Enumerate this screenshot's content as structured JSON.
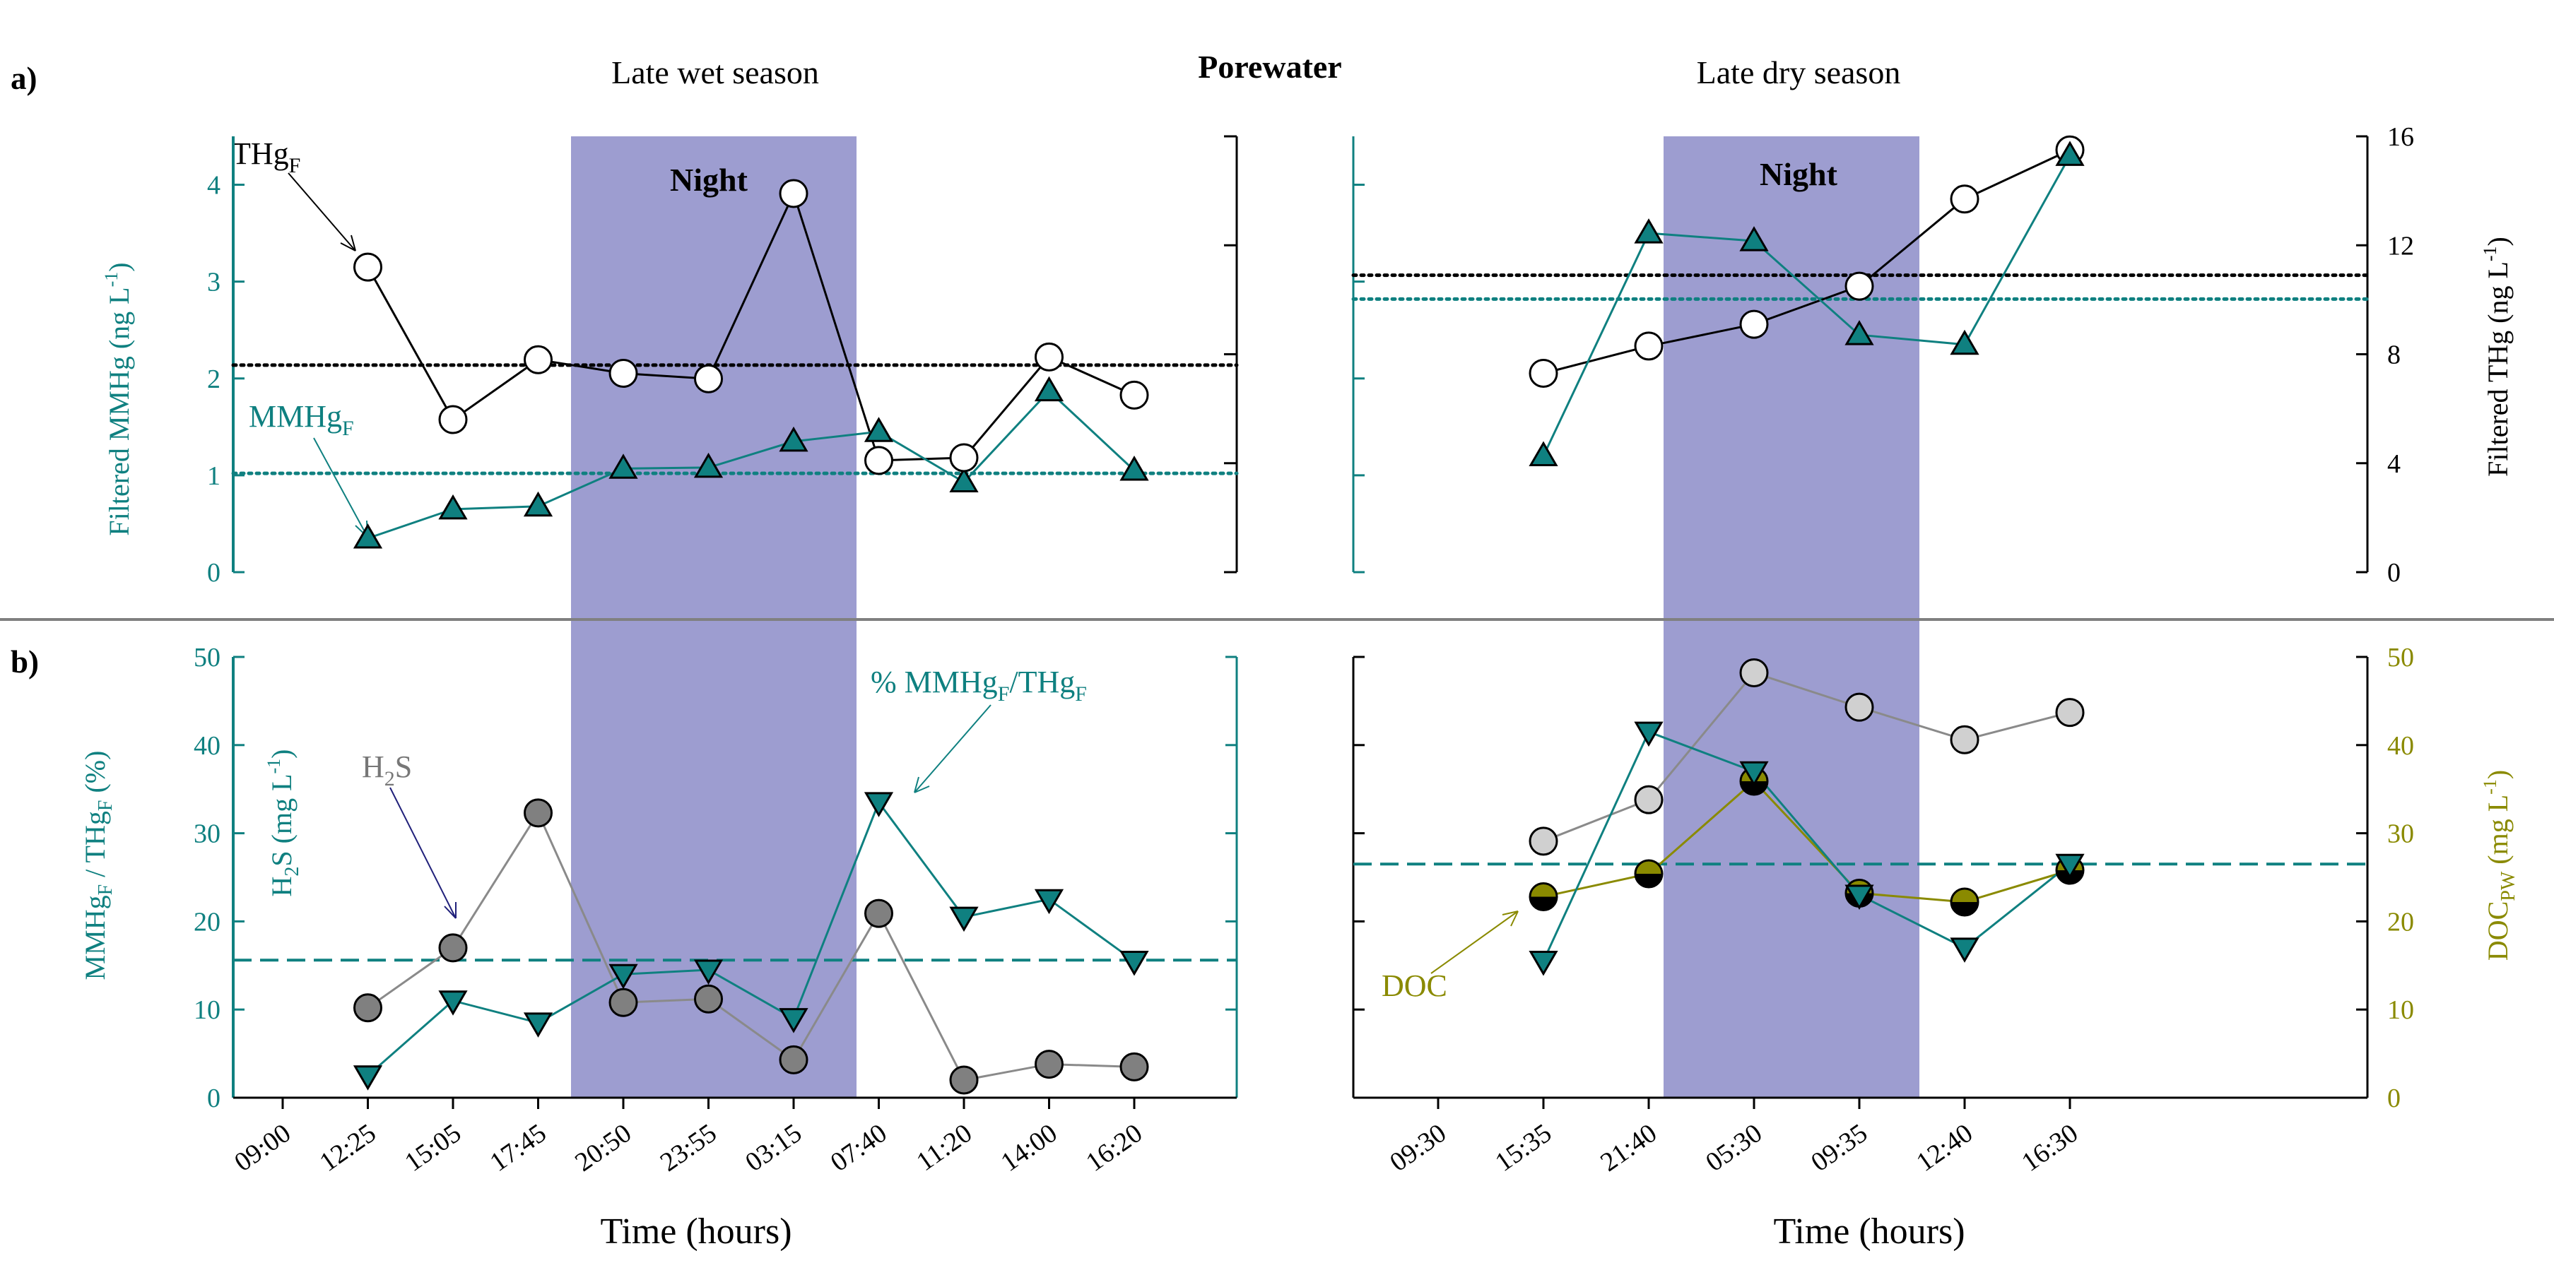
{
  "header": {
    "panel_a": "a)",
    "panel_b": "b)",
    "section_left": "Late wet season",
    "section_center": "Porewater",
    "section_right": "Late dry season",
    "night_label": "Night",
    "xlabel": "Time (hours)"
  },
  "colors": {
    "teal": "#0f8080",
    "black": "#000000",
    "night": "#8f8fca",
    "h2s": "#7a7a7a",
    "doc": "#8a8a00",
    "gray_divider": "#808080",
    "dark_gray_marker": "#808080",
    "light_gray_marker": "#d0d0d0"
  },
  "annotations": {
    "thg": {
      "main": "THg",
      "sub": "F"
    },
    "mmhg": {
      "main": "MMHg",
      "sub": "F"
    },
    "pct": {
      "a": "% MMHg",
      "sub1": "F",
      "b": "/THg",
      "sub2": "F"
    },
    "h2s": {
      "a": "H",
      "sub": "2",
      "b": "S"
    },
    "doc": "DOC"
  },
  "axes": {
    "a_left": {
      "label": "Filtered MMHg (ng L",
      "sup": "-1",
      "end": ")",
      "ticks": [
        "0",
        "1",
        "2",
        "3",
        "4"
      ]
    },
    "a_right": {
      "label": "Filtered THg (ng L",
      "sup": "-1",
      "end": ")",
      "ticks": [
        "0",
        "4",
        "8",
        "12",
        "16"
      ]
    },
    "b_left_outer": {
      "a": "MMHg",
      "s1": "F",
      "b": " / THg",
      "s2": "F",
      "c": " (%)",
      "ticks": [
        "0",
        "10",
        "20",
        "30",
        "40",
        "50"
      ]
    },
    "b_left_inner": {
      "a": "H",
      "s1": "2",
      "b": "S (mg L",
      "sup": "-1",
      "c": ")"
    },
    "b_right": {
      "a": "DOC",
      "s1": "PW",
      "b": " (mg L",
      "sup": "-1",
      "c": ")",
      "ticks": [
        "0",
        "10",
        "20",
        "30",
        "40",
        "50"
      ]
    }
  },
  "chart_data": [
    {
      "type": "line",
      "title": "a) Late wet season — Porewater",
      "categories": [
        "09:00",
        "12:25",
        "15:05",
        "17:45",
        "20:50",
        "23:55",
        "03:15",
        "07:40",
        "11:20",
        "14:00",
        "16:20"
      ],
      "night": {
        "from": 3.25,
        "to": 6.6
      },
      "series": [
        {
          "name": "MMHgF",
          "axis": "left",
          "ylim": [
            0,
            4.5
          ],
          "values": [
            null,
            0.35,
            0.65,
            0.68,
            1.07,
            1.08,
            1.35,
            1.45,
            0.93,
            1.87,
            1.05
          ],
          "reference": 1.02
        },
        {
          "name": "THgF",
          "axis": "right",
          "ylim": [
            0,
            16
          ],
          "values": [
            null,
            11.2,
            5.6,
            7.8,
            7.3,
            7.1,
            13.9,
            4.1,
            4.2,
            7.9,
            6.5
          ],
          "reference": 7.6
        }
      ]
    },
    {
      "type": "line",
      "title": "a) Late dry season — Porewater",
      "categories": [
        "09:30",
        "15:35",
        "21:40",
        "05:30",
        "09:35",
        "12:40",
        "16:30"
      ],
      "night": {
        "from": 1.75,
        "to": 3.55
      },
      "series": [
        {
          "name": "MMHgF",
          "axis": "left",
          "ylim": [
            0,
            4.5
          ],
          "values": [
            null,
            1.2,
            3.5,
            3.42,
            2.45,
            2.35,
            4.3
          ],
          "reference": 2.82
        },
        {
          "name": "THgF",
          "axis": "right",
          "ylim": [
            0,
            16
          ],
          "values": [
            null,
            7.3,
            8.3,
            9.1,
            10.5,
            13.7,
            15.5
          ],
          "reference": 10.9
        }
      ]
    },
    {
      "type": "line",
      "title": "b) Late wet season",
      "categories": [
        "09:00",
        "12:25",
        "15:05",
        "17:45",
        "20:50",
        "23:55",
        "03:15",
        "07:40",
        "11:20",
        "14:00",
        "16:20"
      ],
      "ylim": [
        0,
        50
      ],
      "series": [
        {
          "name": "% MMHgF/THgF",
          "values": [
            null,
            2.5,
            11,
            8.5,
            14,
            14.5,
            9,
            33.5,
            20.5,
            22.5,
            15.5
          ],
          "reference": 15.6
        },
        {
          "name": "H2S",
          "values": [
            null,
            10.2,
            17,
            32.3,
            10.8,
            11.2,
            4.3,
            20.9,
            2.0,
            3.8,
            3.5
          ]
        }
      ]
    },
    {
      "type": "line",
      "title": "b) Late dry season",
      "categories": [
        "09:30",
        "15:35",
        "21:40",
        "05:30",
        "09:35",
        "12:40",
        "16:30"
      ],
      "ylim": [
        0,
        50
      ],
      "series": [
        {
          "name": "% MMHgF/THgF",
          "values": [
            null,
            15.5,
            41.5,
            37,
            23,
            17,
            26.5
          ],
          "reference": 26.5
        },
        {
          "name": "H2S",
          "values": [
            null,
            29.1,
            33.8,
            48.2,
            44.3,
            40.6,
            43.7
          ]
        },
        {
          "name": "DOC",
          "values": [
            null,
            22.8,
            25.4,
            35.9,
            23.2,
            22.2,
            25.8
          ]
        }
      ]
    }
  ]
}
